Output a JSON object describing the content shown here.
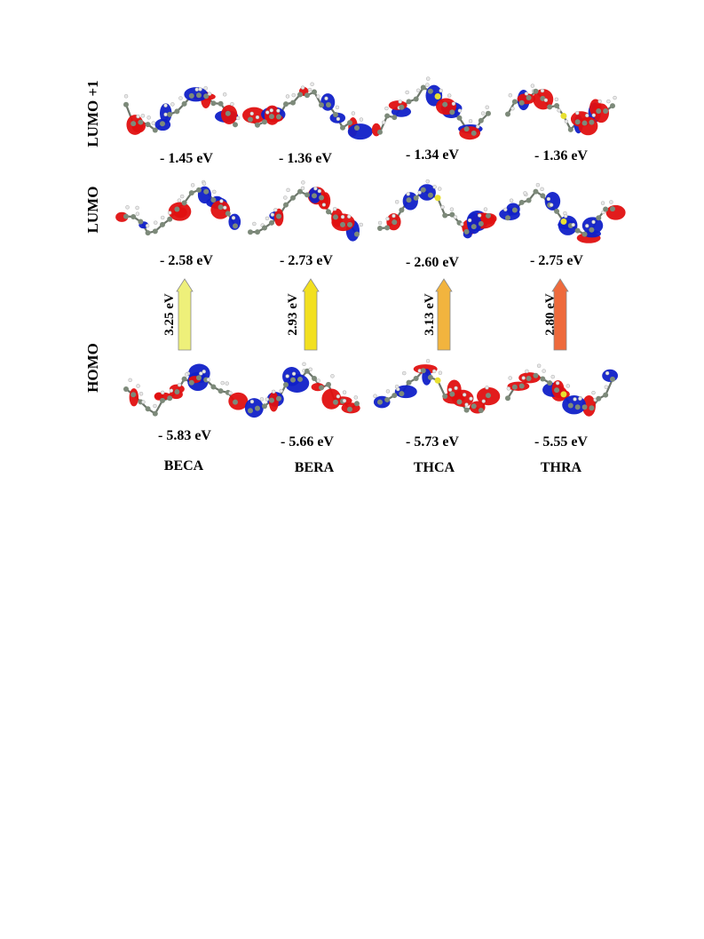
{
  "rows": [
    {
      "key": "lumo1",
      "label": "LUMO +1"
    },
    {
      "key": "lumo",
      "label": "LUMO"
    },
    {
      "key": "homo",
      "label": "HOMO"
    }
  ],
  "molecules": [
    {
      "name": "BECA",
      "lumo1": "- 1.45 eV",
      "lumo": "- 2.58 eV",
      "homo": "- 5.83 eV",
      "gap": "3.25 eV",
      "arrow_color": "#eef07a"
    },
    {
      "name": "BERA",
      "lumo1": "- 1.36 eV",
      "lumo": "- 2.73 eV",
      "homo": "- 5.66 eV",
      "gap": "2.93 eV",
      "arrow_color": "#f2e020"
    },
    {
      "name": "THCA",
      "lumo1": "- 1.34 eV",
      "lumo": "- 2.60 eV",
      "homo": "- 5.73 eV",
      "gap": "3.13 eV",
      "arrow_color": "#f2b43e"
    },
    {
      "name": "THRA",
      "lumo1": "- 1.36 eV",
      "lumo": "- 2.75 eV",
      "homo": "- 5.55 eV",
      "gap": "2.80 eV",
      "arrow_color": "#ee6a3c"
    }
  ],
  "colors": {
    "lobe_positive": "#e01010",
    "lobe_negative": "#1020c8",
    "atom_carbon": "#7d8a7a",
    "atom_hydrogen": "#e8e8e8",
    "atom_sulfur": "#e8e030"
  }
}
